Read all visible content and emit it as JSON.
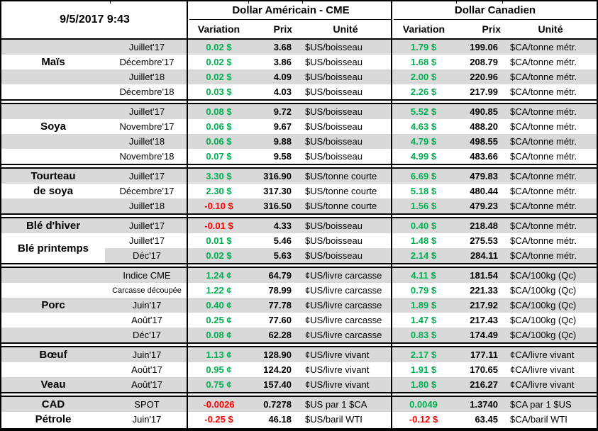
{
  "header": {
    "datetime": "9/5/2017 9:43",
    "us_group": "Dollar Américain - CME",
    "ca_group": "Dollar Canadien",
    "subheaders": [
      "Variation",
      "Prix",
      "Unité"
    ]
  },
  "colors": {
    "positive": "#00B050",
    "negative": "#FF0000",
    "row_shade": "#D9D9D9",
    "border": "#000000"
  },
  "sections": [
    {
      "name": "mais",
      "rows": [
        {
          "label": "",
          "month": "Juillet'17",
          "shade": true,
          "us_var": "0.02 $",
          "us_sign": "pos",
          "us_prix": "3.68",
          "us_unit": "$US/boisseau",
          "ca_var": "1.79 $",
          "ca_sign": "pos",
          "ca_prix": "199.06",
          "ca_unit": "$CA/tonne métr."
        },
        {
          "label": "Maïs",
          "month": "Décembre'17",
          "shade": false,
          "us_var": "0.02 $",
          "us_sign": "pos",
          "us_prix": "3.86",
          "us_unit": "$US/boisseau",
          "ca_var": "1.68 $",
          "ca_sign": "pos",
          "ca_prix": "208.79",
          "ca_unit": "$CA/tonne métr."
        },
        {
          "label": "",
          "month": "Juillet'18",
          "shade": true,
          "us_var": "0.02 $",
          "us_sign": "pos",
          "us_prix": "4.09",
          "us_unit": "$US/boisseau",
          "ca_var": "2.00 $",
          "ca_sign": "pos",
          "ca_prix": "220.96",
          "ca_unit": "$CA/tonne métr."
        },
        {
          "label": "",
          "month": "Décembre'18",
          "shade": false,
          "us_var": "0.03 $",
          "us_sign": "pos",
          "us_prix": "4.03",
          "us_unit": "$US/boisseau",
          "ca_var": "2.26 $",
          "ca_sign": "pos",
          "ca_prix": "217.99",
          "ca_unit": "$CA/tonne métr."
        }
      ]
    },
    {
      "name": "soya",
      "rows": [
        {
          "label": "",
          "month": "Juillet'17",
          "shade": true,
          "us_var": "0.08 $",
          "us_sign": "pos",
          "us_prix": "9.72",
          "us_unit": "$US/boisseau",
          "ca_var": "5.52 $",
          "ca_sign": "pos",
          "ca_prix": "490.85",
          "ca_unit": "$CA/tonne métr."
        },
        {
          "label": "Soya",
          "month": "Novembre'17",
          "shade": false,
          "us_var": "0.06 $",
          "us_sign": "pos",
          "us_prix": "9.67",
          "us_unit": "$US/boisseau",
          "ca_var": "4.63 $",
          "ca_sign": "pos",
          "ca_prix": "488.20",
          "ca_unit": "$CA/tonne métr."
        },
        {
          "label": "",
          "month": "Juillet'18",
          "shade": true,
          "us_var": "0.06 $",
          "us_sign": "pos",
          "us_prix": "9.88",
          "us_unit": "$US/boisseau",
          "ca_var": "4.79 $",
          "ca_sign": "pos",
          "ca_prix": "498.55",
          "ca_unit": "$CA/tonne métr."
        },
        {
          "label": "",
          "month": "Novembre'18",
          "shade": false,
          "us_var": "0.07 $",
          "us_sign": "pos",
          "us_prix": "9.58",
          "us_unit": "$US/boisseau",
          "ca_var": "4.99 $",
          "ca_sign": "pos",
          "ca_prix": "483.66",
          "ca_unit": "$CA/tonne métr."
        }
      ]
    },
    {
      "name": "tourteau",
      "rows": [
        {
          "label": "Tourteau",
          "month": "Juillet'17",
          "shade": true,
          "us_var": "3.30 $",
          "us_sign": "pos",
          "us_prix": "316.90",
          "us_unit": "$US/tonne courte",
          "ca_var": "6.69 $",
          "ca_sign": "pos",
          "ca_prix": "479.83",
          "ca_unit": "$CA/tonne métr."
        },
        {
          "label": "de soya",
          "month": "Décembre'17",
          "shade": false,
          "us_var": "2.30 $",
          "us_sign": "pos",
          "us_prix": "317.30",
          "us_unit": "$US/tonne courte",
          "ca_var": "5.18 $",
          "ca_sign": "pos",
          "ca_prix": "480.44",
          "ca_unit": "$CA/tonne métr."
        },
        {
          "label": "",
          "month": "Juillet'18",
          "shade": true,
          "us_var": "-0.10 $",
          "us_sign": "neg",
          "us_prix": "316.50",
          "us_unit": "$US/tonne courte",
          "ca_var": "1.56 $",
          "ca_sign": "pos",
          "ca_prix": "479.23",
          "ca_unit": "$CA/tonne métr."
        }
      ]
    },
    {
      "name": "ble",
      "rows": [
        {
          "label": "Blé d'hiver",
          "month": "Juillet'17",
          "shade": true,
          "us_var": "-0.01 $",
          "us_sign": "neg",
          "us_prix": "4.33",
          "us_unit": "$US/boisseau",
          "ca_var": "0.40 $",
          "ca_sign": "pos",
          "ca_prix": "218.48",
          "ca_unit": "$CA/tonne métr."
        },
        {
          "label": "Blé printemps",
          "label_span2": true,
          "month": "Juillet'17",
          "shade": false,
          "us_var": "0.01 $",
          "us_sign": "pos",
          "us_prix": "5.46",
          "us_unit": "$US/boisseau",
          "ca_var": "1.48 $",
          "ca_sign": "pos",
          "ca_prix": "275.53",
          "ca_unit": "$CA/tonne métr."
        },
        {
          "label": "",
          "label_white": true,
          "month": "Déc'17",
          "shade": true,
          "us_var": "0.02 $",
          "us_sign": "pos",
          "us_prix": "5.63",
          "us_unit": "$US/boisseau",
          "ca_var": "2.14 $",
          "ca_sign": "pos",
          "ca_prix": "284.11",
          "ca_unit": "$CA/tonne métr."
        }
      ]
    },
    {
      "name": "porc",
      "rows": [
        {
          "label": "",
          "month": "Indice CME",
          "shade": true,
          "us_var": "1.24 ¢",
          "us_sign": "pos",
          "us_prix": "64.79",
          "us_unit": "¢US/livre carcasse",
          "ca_var": "4.11 $",
          "ca_sign": "pos",
          "ca_prix": "181.54",
          "ca_unit": "$CA/100kg (Qc)"
        },
        {
          "label": "",
          "month": "Carcasse découpée",
          "month_small": true,
          "shade": false,
          "us_var": "1.22 ¢",
          "us_sign": "pos",
          "us_prix": "78.99",
          "us_unit": "¢US/livre carcasse",
          "ca_var": "0.79 $",
          "ca_sign": "pos",
          "ca_prix": "221.33",
          "ca_unit": "$CA/100kg (Qc)"
        },
        {
          "label": "Porc",
          "month": "Juin'17",
          "shade": true,
          "us_var": "0.40 ¢",
          "us_sign": "pos",
          "us_prix": "77.78",
          "us_unit": "¢US/livre carcasse",
          "ca_var": "1.89 $",
          "ca_sign": "pos",
          "ca_prix": "217.92",
          "ca_unit": "$CA/100kg (Qc)"
        },
        {
          "label": "",
          "month": "Août'17",
          "shade": false,
          "us_var": "0.25 ¢",
          "us_sign": "pos",
          "us_prix": "77.60",
          "us_unit": "¢US/livre carcasse",
          "ca_var": "1.47 $",
          "ca_sign": "pos",
          "ca_prix": "217.43",
          "ca_unit": "$CA/100kg (Qc)"
        },
        {
          "label": "",
          "month": "Déc'17",
          "shade": true,
          "us_var": "0.08 ¢",
          "us_sign": "pos",
          "us_prix": "62.28",
          "us_unit": "¢US/livre carcasse",
          "ca_var": "0.83 $",
          "ca_sign": "pos",
          "ca_prix": "174.49",
          "ca_unit": "$CA/100kg (Qc)"
        }
      ]
    },
    {
      "name": "boeuf-veau",
      "rows": [
        {
          "label": "Bœuf",
          "month": "Juin'17",
          "shade": true,
          "us_var": "1.13 ¢",
          "us_sign": "pos",
          "us_prix": "128.90",
          "us_unit": "¢US/livre vivant",
          "ca_var": "2.17 $",
          "ca_sign": "pos",
          "ca_prix": "177.11",
          "ca_unit": "¢CA/livre vivant"
        },
        {
          "label": "",
          "month": "Août'17",
          "shade": false,
          "us_var": "0.95 ¢",
          "us_sign": "pos",
          "us_prix": "124.20",
          "us_unit": "¢US/livre vivant",
          "ca_var": "1.91 $",
          "ca_sign": "pos",
          "ca_prix": "170.65",
          "ca_unit": "¢CA/livre vivant"
        },
        {
          "label": "Veau",
          "month": "Août'17",
          "shade": true,
          "us_var": "0.75 ¢",
          "us_sign": "pos",
          "us_prix": "157.40",
          "us_unit": "¢US/livre vivant",
          "ca_var": "1.80 $",
          "ca_sign": "pos",
          "ca_prix": "216.27",
          "ca_unit": "¢CA/livre vivant"
        }
      ]
    },
    {
      "name": "cad-petrole",
      "rows": [
        {
          "label": "CAD",
          "month": "SPOT",
          "shade": true,
          "us_var": "-0.0026",
          "us_sign": "neg",
          "us_prix": "0.7278",
          "us_unit": "$US par 1 $CA",
          "ca_var": "0.0049",
          "ca_sign": "pos",
          "ca_prix": "1.3740",
          "ca_unit": "$CA par 1 $US"
        },
        {
          "label": "Pétrole",
          "month": "Juin'17",
          "shade": false,
          "us_var": "-0.25 $",
          "us_sign": "neg",
          "us_prix": "46.18",
          "us_unit": "$US/baril WTI",
          "ca_var": "-0.12 $",
          "ca_sign": "neg",
          "ca_prix": "63.45",
          "ca_unit": "$CA/baril WTI"
        }
      ]
    }
  ]
}
